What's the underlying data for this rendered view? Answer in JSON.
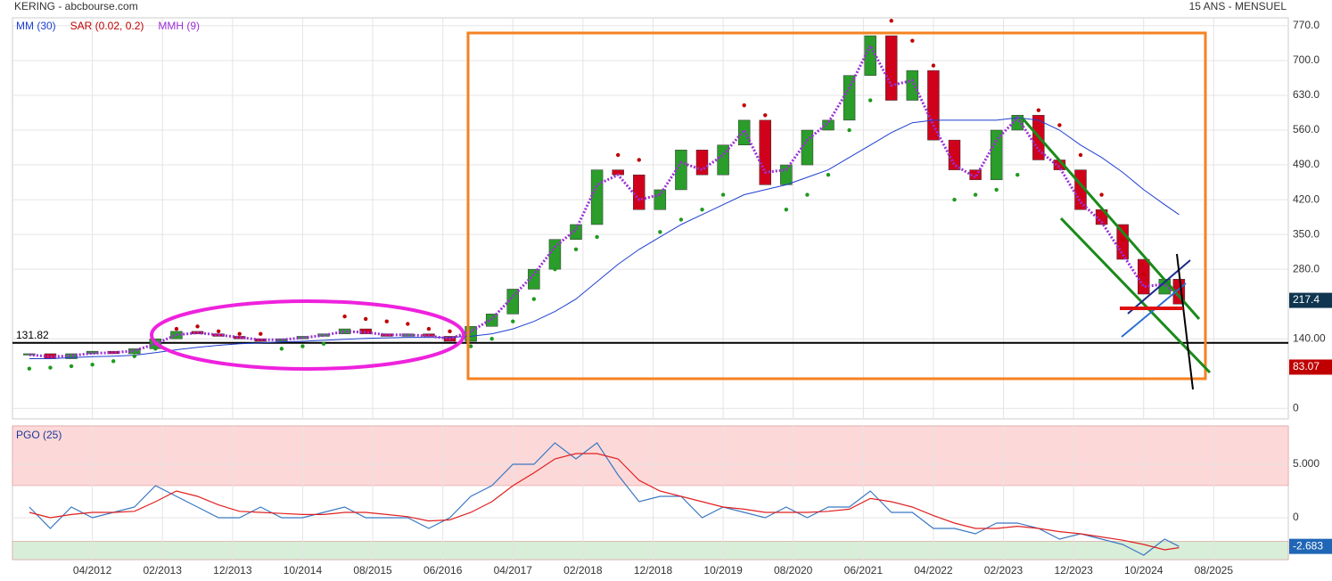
{
  "header": {
    "title": "KERING - abcbourse.com",
    "period": "15 ANS - MENSUEL"
  },
  "chart_data": [
    {
      "type": "candlestick",
      "x": [
        2011.5,
        2011.75,
        2012.0,
        2012.25,
        2012.5,
        2012.75,
        2013.0,
        2013.25,
        2013.5,
        2013.75,
        2014.0,
        2014.25,
        2014.5,
        2014.75,
        2015.0,
        2015.25,
        2015.5,
        2015.75,
        2016.0,
        2016.25,
        2016.5,
        2016.75,
        2017.0,
        2017.25,
        2017.5,
        2017.75,
        2018.0,
        2018.25,
        2018.5,
        2018.75,
        2019.0,
        2019.25,
        2019.5,
        2019.75,
        2020.0,
        2020.25,
        2020.5,
        2020.75,
        2021.0,
        2021.25,
        2021.5,
        2021.75,
        2022.0,
        2022.25,
        2022.5,
        2022.75,
        2023.0,
        2023.25,
        2023.5,
        2023.75,
        2024.0,
        2024.25,
        2024.5,
        2024.75,
        2025.0,
        2025.17
      ],
      "values": [
        110,
        100,
        110,
        115,
        110,
        120,
        140,
        155,
        150,
        145,
        140,
        135,
        140,
        145,
        150,
        160,
        150,
        145,
        150,
        145,
        135,
        165,
        190,
        240,
        280,
        340,
        370,
        480,
        470,
        400,
        440,
        520,
        470,
        530,
        580,
        450,
        490,
        560,
        580,
        670,
        750,
        620,
        680,
        540,
        480,
        460,
        560,
        590,
        500,
        480,
        400,
        370,
        300,
        230,
        260,
        210
      ],
      "up_color": "#2a9d2a",
      "down_color": "#d0021b",
      "series": [
        {
          "name": "MM (30)",
          "color": "#1f3fd1",
          "style": "line",
          "values": [
            100,
            100,
            102,
            104,
            105,
            107,
            112,
            118,
            123,
            127,
            130,
            132,
            134,
            135,
            137,
            139,
            141,
            142,
            143,
            143,
            143,
            145,
            150,
            160,
            175,
            195,
            220,
            255,
            290,
            320,
            345,
            370,
            390,
            410,
            430,
            440,
            450,
            465,
            480,
            505,
            530,
            555,
            575,
            580,
            580,
            580,
            580,
            585,
            580,
            560,
            530,
            505,
            475,
            440,
            410,
            390
          ]
        },
        {
          "name": "SAR (0.02, 0.2)",
          "color": "#c00000",
          "style": "dots",
          "below_color": "#1e9a1e",
          "values": [
            80,
            82,
            85,
            88,
            95,
            105,
            120,
            160,
            165,
            155,
            150,
            150,
            120,
            125,
            130,
            185,
            180,
            175,
            170,
            160,
            155,
            125,
            140,
            175,
            220,
            280,
            320,
            345,
            510,
            500,
            355,
            380,
            400,
            430,
            610,
            590,
            400,
            430,
            470,
            560,
            620,
            780,
            740,
            690,
            420,
            430,
            440,
            470,
            600,
            570,
            510,
            430,
            340,
            270,
            250,
            240
          ]
        },
        {
          "name": "MMH (9)",
          "color": "#9b2fd6",
          "style": "dotted",
          "values": [
            108,
            104,
            106,
            111,
            112,
            116,
            130,
            148,
            152,
            148,
            143,
            138,
            138,
            142,
            147,
            155,
            153,
            148,
            148,
            146,
            140,
            155,
            180,
            225,
            270,
            325,
            360,
            450,
            470,
            420,
            430,
            495,
            480,
            510,
            560,
            475,
            480,
            540,
            575,
            645,
            730,
            650,
            660,
            570,
            490,
            465,
            540,
            585,
            520,
            485,
            415,
            375,
            310,
            245,
            250,
            225
          ]
        }
      ],
      "xlim": [
        2011.3,
        2026.47
      ],
      "xticks": [
        {
          "value": 2012.25,
          "label": "04/2012"
        },
        {
          "value": 2013.083,
          "label": "02/2013"
        },
        {
          "value": 2013.917,
          "label": "12/2013"
        },
        {
          "value": 2014.75,
          "label": "10/2014"
        },
        {
          "value": 2015.583,
          "label": "08/2015"
        },
        {
          "value": 2016.417,
          "label": "06/2016"
        },
        {
          "value": 2017.25,
          "label": "04/2017"
        },
        {
          "value": 2018.083,
          "label": "02/2018"
        },
        {
          "value": 2018.917,
          "label": "12/2018"
        },
        {
          "value": 2019.75,
          "label": "10/2019"
        },
        {
          "value": 2020.583,
          "label": "08/2020"
        },
        {
          "value": 2021.417,
          "label": "06/2021"
        },
        {
          "value": 2022.25,
          "label": "04/2022"
        },
        {
          "value": 2023.083,
          "label": "02/2023"
        },
        {
          "value": 2023.917,
          "label": "12/2023"
        },
        {
          "value": 2024.75,
          "label": "10/2024"
        },
        {
          "value": 2025.583,
          "label": "08/2025"
        }
      ],
      "ylim": [
        -21,
        786
      ],
      "yticks": [
        0,
        {
          "value": 140,
          "label": "140.00"
        },
        {
          "value": 280,
          "label": "280.0"
        },
        {
          "value": 350,
          "label": "350.0"
        },
        {
          "value": 420,
          "label": "420.0"
        },
        {
          "value": 490,
          "label": "490.0"
        },
        {
          "value": 560,
          "label": "560.0"
        },
        {
          "value": 630,
          "label": "630.0"
        },
        {
          "value": 700,
          "label": "700.0"
        },
        {
          "value": 770,
          "label": "770.0"
        }
      ],
      "reference_line": 131.82,
      "price_markers": [
        {
          "value": 217.4,
          "color": "#0f3550"
        },
        {
          "value": 83.07,
          "color": "#c00000"
        }
      ],
      "grid": true
    },
    {
      "type": "line",
      "title": "PGO (25)",
      "series": [
        {
          "color": "#3a78c2",
          "values": [
            1,
            -1,
            1,
            0,
            0.5,
            1,
            3,
            2,
            1,
            0,
            0,
            1,
            0,
            0,
            0.5,
            1,
            0,
            0,
            0,
            -1,
            0,
            2,
            3,
            5,
            5,
            7,
            5.5,
            7,
            4,
            1.5,
            2,
            2,
            0,
            1,
            0.5,
            0,
            1,
            0,
            1,
            1,
            2.5,
            0.5,
            0.5,
            -1,
            -1,
            -1.5,
            -0.5,
            -0.5,
            -1,
            -2,
            -1.5,
            -2,
            -2.5,
            -3.5,
            -2,
            -2.683
          ]
        },
        {
          "color": "#e02020",
          "values": [
            0.5,
            0,
            0.3,
            0.5,
            0.5,
            0.6,
            1.5,
            2.5,
            2,
            1.2,
            0.6,
            0.5,
            0.4,
            0.3,
            0.3,
            0.5,
            0.5,
            0.3,
            0.1,
            -0.3,
            -0.2,
            0.5,
            1.5,
            3,
            4.2,
            5.5,
            6,
            6,
            5.5,
            3.5,
            2.5,
            2,
            1.5,
            1,
            0.8,
            0.5,
            0.5,
            0.5,
            0.6,
            0.8,
            1.8,
            1.5,
            1,
            0.2,
            -0.5,
            -1,
            -1,
            -0.8,
            -1,
            -1.3,
            -1.5,
            -1.8,
            -2.1,
            -2.5,
            -3,
            -2.8
          ]
        }
      ],
      "ylim": [
        -3.92,
        8.58
      ],
      "yticks": [
        {
          "value": 5,
          "label": "5.000"
        },
        0
      ],
      "zones": [
        {
          "from": 3,
          "to": 8.58,
          "color": "#fdd8d8"
        },
        {
          "from": -3.92,
          "to": -2.2,
          "color": "#d8eed8"
        }
      ],
      "price_markers": [
        {
          "value": -2.683,
          "color": "#1f66b5"
        }
      ],
      "grid": true
    }
  ]
}
